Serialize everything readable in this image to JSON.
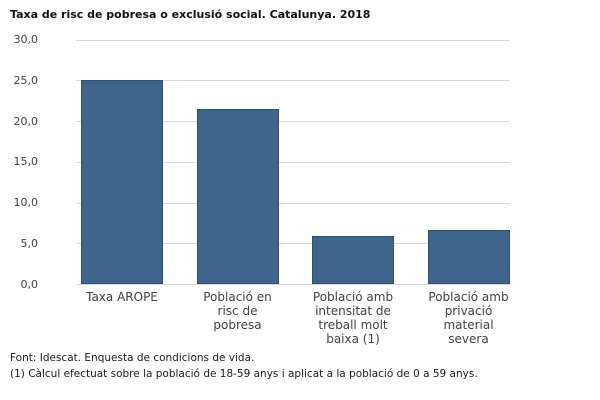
{
  "title": "Taxa de risc de pobresa o exclusió social. Catalunya. 2018",
  "chart_data": {
    "type": "bar",
    "title": "Taxa de risc de pobresa o exclusió social. Catalunya. 2018",
    "categories": [
      "Taxa AROPE",
      "Població en risc de pobresa",
      "Població amb intensitat de treball molt baixa (1)",
      "Població amb privació material severa"
    ],
    "category_label_lines": [
      [
        "Taxa AROPE"
      ],
      [
        "Població en",
        "risc de",
        "pobresa"
      ],
      [
        "Població amb",
        "intensitat de",
        "treball molt",
        "baixa (1)"
      ],
      [
        "Població amb",
        "privació",
        "material",
        "severa"
      ]
    ],
    "values": [
      25.0,
      21.5,
      5.9,
      6.6
    ],
    "xlabel": "",
    "ylabel": "",
    "ylim": [
      0,
      30
    ],
    "ytick_interval": 5,
    "ytick_labels": [
      "30,0",
      "25,0",
      "20,0",
      "15,0",
      "10,0",
      "5,0",
      "0,0"
    ],
    "grid": true,
    "legend": "none",
    "colors": {
      "bar_fill": "#3f658d",
      "bar_border": "#2d4f71",
      "gridline": "#d9d9d9",
      "axis_text": "#404040"
    }
  },
  "footer": {
    "source": "Font: Idescat. Enquesta de condicions de vida.",
    "note": "(1) Càlcul efectuat sobre la població de 18-59 anys i aplicat a la població de 0 a 59 anys."
  }
}
